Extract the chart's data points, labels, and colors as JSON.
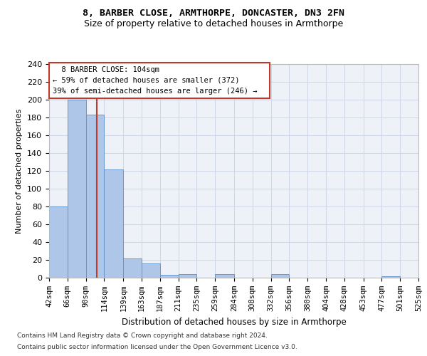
{
  "title1": "8, BARBER CLOSE, ARMTHORPE, DONCASTER, DN3 2FN",
  "title2": "Size of property relative to detached houses in Armthorpe",
  "xlabel": "Distribution of detached houses by size in Armthorpe",
  "ylabel": "Number of detached properties",
  "footer1": "Contains HM Land Registry data © Crown copyright and database right 2024.",
  "footer2": "Contains public sector information licensed under the Open Government Licence v3.0.",
  "annotation_line1": "8 BARBER CLOSE: 104sqm",
  "annotation_line2": "← 59% of detached houses are smaller (372)",
  "annotation_line3": "39% of semi-detached houses are larger (246) →",
  "property_size": 104,
  "bin_edges": [
    42,
    66,
    90,
    114,
    139,
    163,
    187,
    211,
    235,
    259,
    284,
    308,
    332,
    356,
    380,
    404,
    428,
    453,
    477,
    501,
    525
  ],
  "bar_heights": [
    80,
    200,
    183,
    122,
    22,
    16,
    3,
    4,
    0,
    4,
    0,
    0,
    4,
    0,
    0,
    0,
    0,
    0,
    2,
    0
  ],
  "bar_color": "#aec6e8",
  "bar_edge_color": "#5b8fc9",
  "vline_color": "#c0392b",
  "grid_color": "#d0d8e8",
  "background_color": "#eef2f8",
  "annotation_box_color": "#c0392b",
  "ylim": [
    0,
    240
  ],
  "yticks": [
    0,
    20,
    40,
    60,
    80,
    100,
    120,
    140,
    160,
    180,
    200,
    220,
    240
  ],
  "title1_fontsize": 9.5,
  "title2_fontsize": 9,
  "ylabel_fontsize": 8,
  "xlabel_fontsize": 8.5,
  "tick_fontsize": 7.5,
  "ytick_fontsize": 8,
  "annotation_fontsize": 7.5,
  "footer_fontsize": 6.5
}
